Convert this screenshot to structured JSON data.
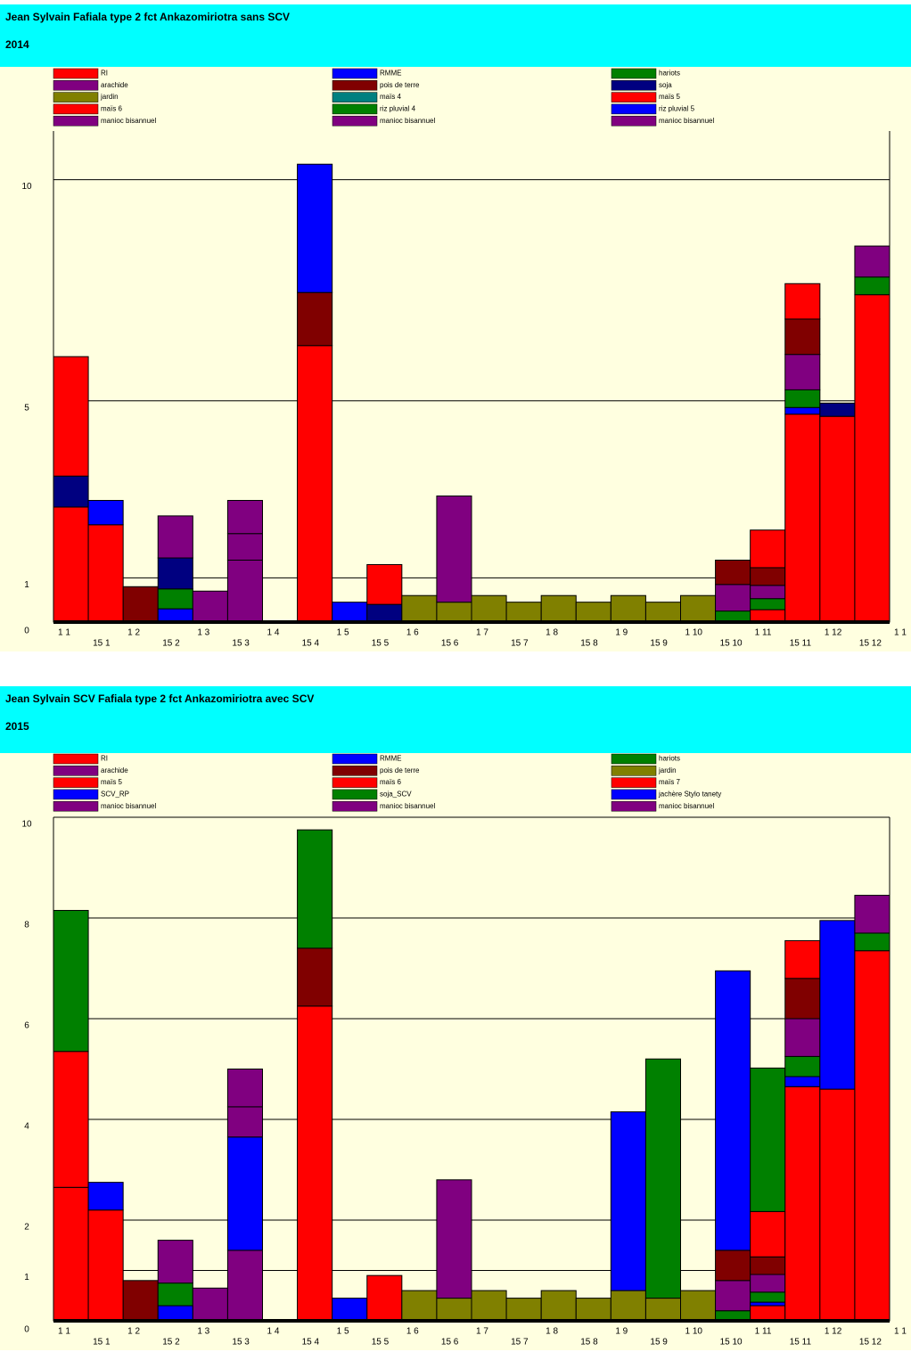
{
  "chart_data": [
    {
      "type": "stacked_bar",
      "title": "Jean Sylvain  Fafiala  type 2 fct  Ankazomiriotra  sans SCV",
      "subtitle": "2014",
      "period_labels": [
        "1 1",
        "15 1",
        "1 2",
        "15 2",
        "1 3",
        "15 3",
        "1 4",
        "15 4",
        "1 5",
        "15 5",
        "1 6",
        "15 6",
        "1 7",
        "15 7",
        "1 8",
        "15 8",
        "1 9",
        "15 9",
        "1 10",
        "15 10",
        "1 11",
        "15 11",
        "1 12",
        "15 12",
        "1 1"
      ],
      "ylim": [
        0,
        11.1
      ],
      "yticks": [
        0,
        1,
        5,
        10
      ],
      "grid": true,
      "series": [
        {
          "name": "RI",
          "color": "#ff0000",
          "values": [
            2.6,
            2.2,
            0,
            0,
            0,
            0,
            0,
            6.25,
            0,
            0,
            0,
            0,
            0,
            0,
            0,
            0,
            0,
            0,
            0,
            0,
            0.28,
            4.7,
            4.65,
            7.4
          ]
        },
        {
          "name": "RMME",
          "color": "#0000ff",
          "values": [
            0,
            0.55,
            0,
            0.3,
            0,
            0,
            0,
            0,
            0.45,
            0,
            0,
            0,
            0,
            0,
            0,
            0,
            0,
            0,
            0,
            0,
            0,
            0.15,
            0,
            0
          ]
        },
        {
          "name": "hariots",
          "color": "#008000",
          "values": [
            0,
            0,
            0,
            0.45,
            0,
            0,
            0,
            0,
            0,
            0,
            0,
            0,
            0,
            0,
            0,
            0,
            0,
            0,
            0,
            0.25,
            0.25,
            0.4,
            0,
            0.4
          ]
        },
        {
          "name": "arachide",
          "color": "#800080",
          "values": [
            0,
            0,
            0,
            0,
            0.7,
            1.4,
            0,
            0,
            0,
            0,
            0,
            0,
            0,
            0,
            0,
            0,
            0,
            0,
            0,
            0.6,
            0.3,
            0.8,
            0,
            0.7
          ]
        },
        {
          "name": "pois de terre",
          "color": "#800000",
          "values": [
            0,
            0,
            0.8,
            0,
            0,
            0,
            0,
            1.2,
            0,
            0,
            0,
            0,
            0,
            0,
            0,
            0,
            0,
            0,
            0,
            0.55,
            0.4,
            0.8,
            0,
            0
          ]
        },
        {
          "name": "soja",
          "color": "#000080",
          "values": [
            0.7,
            0,
            0,
            0.7,
            0,
            0,
            0,
            0,
            0,
            0.4,
            0,
            0,
            0,
            0,
            0,
            0,
            0,
            0,
            0,
            0,
            0,
            0,
            0.3,
            0
          ]
        },
        {
          "name": "jardin",
          "color": "#808000",
          "values": [
            0,
            0,
            0,
            0,
            0,
            0,
            0,
            0,
            0,
            0,
            0.6,
            0.45,
            0.6,
            0.45,
            0.6,
            0.45,
            0.6,
            0.45,
            0.6,
            0,
            0,
            0,
            0,
            0
          ]
        },
        {
          "name": "maïs 4",
          "color": "#008080",
          "values": [
            0,
            0,
            0,
            0,
            0,
            0,
            0,
            0,
            0,
            0,
            0,
            0,
            0,
            0,
            0,
            0,
            0,
            0,
            0,
            0,
            0,
            0,
            0,
            0
          ]
        },
        {
          "name": "maïs 5",
          "color": "#ff0000",
          "values": [
            2.7,
            0,
            0,
            0,
            0,
            0,
            0,
            0,
            0,
            0.9,
            0,
            0,
            0,
            0,
            0,
            0,
            0,
            0,
            0,
            0,
            0.85,
            0.8,
            0,
            0
          ]
        },
        {
          "name": "maïs 6",
          "color": "#ff0000",
          "values": [
            0,
            0,
            0,
            0,
            0,
            0,
            0,
            0,
            0,
            0,
            0,
            0,
            0,
            0,
            0,
            0,
            0,
            0,
            0,
            0,
            0,
            0,
            0,
            0
          ]
        },
        {
          "name": "riz pluvial 4",
          "color": "#008000",
          "values": [
            0,
            0,
            0,
            0,
            0,
            0,
            0,
            0,
            0,
            0,
            0,
            0,
            0,
            0,
            0,
            0,
            0,
            0,
            0,
            0,
            0,
            0,
            0,
            0
          ]
        },
        {
          "name": "riz pluvial 5",
          "color": "#0000ff",
          "values": [
            0,
            0,
            0,
            0,
            0,
            0,
            0,
            2.9,
            0,
            0,
            0,
            0,
            0,
            0,
            0,
            0,
            0,
            0,
            0,
            0,
            0,
            0,
            0,
            0
          ]
        },
        {
          "name": "manioc bisannuel",
          "color": "#800080",
          "values": [
            0,
            0,
            0,
            0.95,
            0,
            0.6,
            0,
            0,
            0,
            0,
            0,
            2.4,
            0,
            0,
            0,
            0,
            0,
            0,
            0,
            0,
            0,
            0,
            0,
            0
          ]
        },
        {
          "name": "manioc bisannuel",
          "color": "#800080",
          "values": [
            0,
            0,
            0,
            0,
            0,
            0.75,
            0,
            0,
            0,
            0,
            0,
            0,
            0,
            0,
            0,
            0,
            0,
            0,
            0,
            0,
            0,
            0,
            0,
            0
          ]
        },
        {
          "name": "manioc bisannuel",
          "color": "#800080",
          "values": [
            0,
            0,
            0,
            0,
            0,
            0,
            0,
            0,
            0,
            0,
            0,
            0,
            0,
            0,
            0,
            0,
            0,
            0,
            0,
            0,
            0,
            0,
            0,
            0
          ]
        }
      ]
    },
    {
      "type": "stacked_bar",
      "title": "Jean Sylvain SCV  Fafiala  type 2 fct  Ankazomiriotra  avec SCV",
      "subtitle": "2015",
      "period_labels": [
        "1 1",
        "15 1",
        "1 2",
        "15 2",
        "1 3",
        "15 3",
        "1 4",
        "15 4",
        "1 5",
        "15 5",
        "1 6",
        "15 6",
        "1 7",
        "15 7",
        "1 8",
        "15 8",
        "1 9",
        "15 9",
        "1 10",
        "15 10",
        "1 11",
        "15 11",
        "1 12",
        "15 12",
        "1 1"
      ],
      "ylim": [
        0,
        10
      ],
      "yticks": [
        0,
        1,
        2,
        4,
        6,
        8,
        10
      ],
      "grid": true,
      "series": [
        {
          "name": "RI",
          "color": "#ff0000",
          "values": [
            2.65,
            2.2,
            0,
            0,
            0,
            0,
            0,
            6.25,
            0,
            0,
            0,
            0,
            0,
            0,
            0,
            0,
            0,
            0,
            0,
            0,
            0.3,
            4.65,
            4.6,
            7.35
          ]
        },
        {
          "name": "RMME",
          "color": "#0000ff",
          "values": [
            0,
            0.55,
            0,
            0.3,
            0,
            0,
            0,
            0,
            0.45,
            0,
            0,
            0,
            0,
            0,
            0,
            0,
            0,
            0,
            0,
            0,
            0.07,
            0.2,
            0,
            0
          ]
        },
        {
          "name": "hariots",
          "color": "#008000",
          "values": [
            0,
            0,
            0,
            0.45,
            0,
            0,
            0,
            0,
            0,
            0,
            0,
            0,
            0,
            0,
            0,
            0,
            0,
            0,
            0,
            0.2,
            0.2,
            0.4,
            0,
            0.35
          ]
        },
        {
          "name": "arachide",
          "color": "#800080",
          "values": [
            0,
            0,
            0,
            0.85,
            0.65,
            1.4,
            0,
            0,
            0,
            0,
            0,
            0,
            0,
            0,
            0,
            0,
            0,
            0,
            0,
            0.6,
            0.35,
            0.75,
            0,
            0.75
          ]
        },
        {
          "name": "pois de terre",
          "color": "#800000",
          "values": [
            0,
            0,
            0.8,
            0,
            0,
            0,
            0,
            1.15,
            0,
            0,
            0,
            0,
            0,
            0,
            0,
            0,
            0,
            0,
            0,
            0.6,
            0.35,
            0.8,
            0,
            0
          ]
        },
        {
          "name": "jardin",
          "color": "#808000",
          "values": [
            0,
            0,
            0,
            0,
            0,
            0,
            0,
            0,
            0,
            0,
            0.6,
            0.45,
            0.6,
            0.45,
            0.6,
            0.45,
            0.6,
            0.45,
            0.6,
            0,
            0,
            0,
            0,
            0
          ]
        },
        {
          "name": "maïs 5",
          "color": "#ff0000",
          "values": [
            2.7,
            0,
            0,
            0,
            0,
            0,
            0,
            0,
            0,
            0.9,
            0,
            0,
            0,
            0,
            0,
            0,
            0,
            0,
            0,
            0,
            0.9,
            0.75,
            0,
            0
          ]
        },
        {
          "name": "maïs 6",
          "color": "#ff0000",
          "values": [
            0,
            0,
            0,
            0,
            0,
            0,
            0,
            0,
            0,
            0,
            0,
            0,
            0,
            0,
            0,
            0,
            0,
            0,
            0,
            0,
            0,
            0,
            0,
            0
          ]
        },
        {
          "name": "maïs 7",
          "color": "#ff0000",
          "values": [
            0,
            0,
            0,
            0,
            0,
            0,
            0,
            0,
            0,
            0,
            0,
            0,
            0,
            0,
            0,
            0,
            0,
            0,
            0,
            0,
            0,
            0,
            0,
            0
          ]
        },
        {
          "name": "SCV_RP",
          "color": "#0000ff",
          "values": [
            0,
            0,
            0,
            0,
            0,
            2.25,
            0,
            0,
            0,
            0,
            0,
            0,
            0,
            0,
            0,
            0,
            0,
            0,
            0,
            5.55,
            0,
            0,
            3.35,
            0
          ]
        },
        {
          "name": "soja_SCV",
          "color": "#008000",
          "values": [
            2.8,
            0,
            0,
            0,
            0,
            0,
            0,
            2.35,
            0,
            0,
            0,
            0,
            0,
            0,
            0,
            0,
            0,
            4.75,
            0,
            0,
            2.85,
            0,
            0,
            0
          ]
        },
        {
          "name": "jachère Stylo tanety",
          "color": "#0000ff",
          "values": [
            0,
            0,
            0,
            0,
            0,
            0,
            0,
            0,
            0,
            0,
            0,
            0,
            0,
            0,
            0,
            0,
            3.55,
            0,
            0,
            0,
            0,
            0,
            0,
            0
          ]
        },
        {
          "name": "manioc bisannuel",
          "color": "#800080",
          "values": [
            0,
            0,
            0,
            0,
            0,
            0.6,
            0,
            0,
            0,
            0,
            0,
            2.35,
            0,
            0,
            0,
            0,
            0,
            0,
            0,
            0,
            0,
            0,
            0,
            0
          ]
        },
        {
          "name": "manioc bisannuel",
          "color": "#800080",
          "values": [
            0,
            0,
            0,
            0,
            0,
            0.75,
            0,
            0,
            0,
            0,
            0,
            0,
            0,
            0,
            0,
            0,
            0,
            0,
            0,
            0,
            0,
            0,
            0,
            0
          ]
        },
        {
          "name": "manioc bisannuel",
          "color": "#800080",
          "values": [
            0,
            0,
            0,
            0,
            0,
            0,
            0,
            0,
            0,
            0,
            0,
            0,
            0,
            0,
            0,
            0,
            0,
            0,
            0,
            0,
            0,
            0,
            0,
            0
          ]
        }
      ]
    }
  ]
}
